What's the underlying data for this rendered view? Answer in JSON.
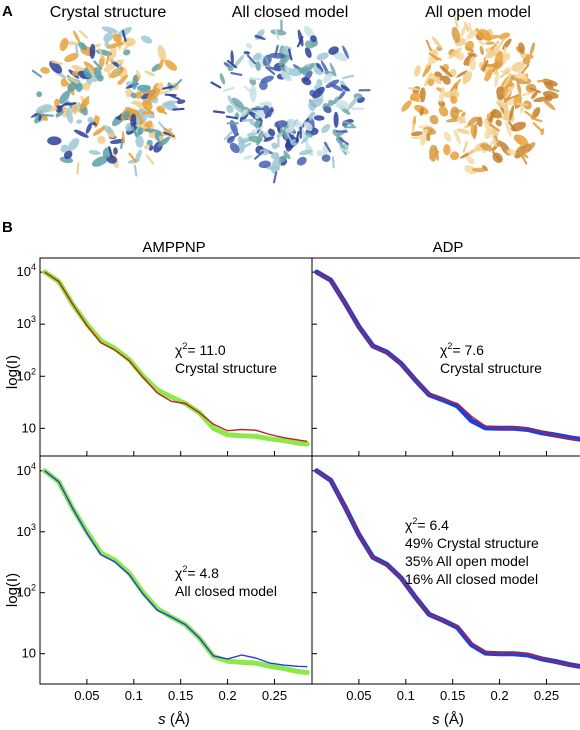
{
  "panel_a": {
    "label": "A",
    "structures": [
      {
        "title": "Crystal structure",
        "palette": [
          "#e8a13a",
          "#f1cf8c",
          "#9ec8d2",
          "#2c3f9a",
          "#5aa0a8"
        ]
      },
      {
        "title": "All closed model",
        "palette": [
          "#2c3f9a",
          "#4a5fb4",
          "#9ec8d2",
          "#6fa7a8",
          "#c9e3e6"
        ]
      },
      {
        "title": "All open model",
        "palette": [
          "#e8a13a",
          "#f4d9a2",
          "#d69a45",
          "#f1cf8c",
          "#c47f2b"
        ]
      }
    ]
  },
  "panel_b": {
    "label": "B",
    "column_titles": [
      "AMPPNP",
      "ADP"
    ],
    "y_axis_label": "log(I)",
    "x_axis_label_var": "s",
    "x_axis_label_unit": " (Å)",
    "y_tick_labels": [
      {
        "mant": "10",
        "exp": "4"
      },
      {
        "mant": "10",
        "exp": "3"
      },
      {
        "mant": "10",
        "exp": "2"
      },
      {
        "mant": "10",
        "exp": ""
      }
    ],
    "x_tick_labels": [
      "0.05",
      "0.1",
      "0.15",
      "0.2",
      "0.25"
    ],
    "panels": [
      {
        "chi_prefix": "χ",
        "chi_exp": "2",
        "chi_value": "= 11.0",
        "lines": [
          "Crystal structure"
        ]
      },
      {
        "chi_prefix": "χ",
        "chi_exp": "2",
        "chi_value": "= 7.6",
        "lines": [
          "Crystal structure"
        ]
      },
      {
        "chi_prefix": "χ",
        "chi_exp": "2",
        "chi_value": "= 4.8",
        "lines": [
          "All closed model"
        ]
      },
      {
        "chi_prefix": "χ",
        "chi_exp": "2",
        "chi_value": "= 6.4",
        "lines": [
          "49% Crystal structure",
          "35% All open model",
          "16% All closed model"
        ]
      }
    ]
  },
  "chart_data": [
    {
      "type": "line",
      "title": "AMPPNP",
      "ylabel": "log(I)",
      "xlabel": "s (Å)",
      "yscale": "log",
      "xlim": [
        0,
        0.29
      ],
      "ylim": [
        5,
        12000
      ],
      "x": [
        0.005,
        0.02,
        0.035,
        0.05,
        0.065,
        0.08,
        0.095,
        0.11,
        0.125,
        0.14,
        0.155,
        0.17,
        0.185,
        0.2,
        0.215,
        0.23,
        0.245,
        0.26,
        0.275,
        0.285
      ],
      "series": [
        {
          "style": "experimental",
          "color": "#8de84a",
          "values": [
            10000,
            6600,
            2400,
            1000,
            480,
            340,
            210,
            100,
            55,
            40,
            30,
            20,
            10,
            7.5,
            7.2,
            7.0,
            6.3,
            5.8,
            5.2,
            5.0
          ]
        },
        {
          "style": "fit",
          "color": "#c0201e",
          "values": [
            10000,
            6600,
            2400,
            950,
            440,
            320,
            200,
            95,
            48,
            33,
            30,
            20,
            12,
            9.0,
            9.5,
            9.2,
            7.6,
            6.6,
            6.0,
            5.6
          ]
        }
      ],
      "annotation": "χ2= 11.0 Crystal structure"
    },
    {
      "type": "line",
      "title": "ADP",
      "ylabel": "log(I)",
      "xlabel": "s (Å)",
      "yscale": "log",
      "xlim": [
        0,
        0.29
      ],
      "ylim": [
        5,
        12000
      ],
      "x": [
        0.005,
        0.02,
        0.035,
        0.05,
        0.065,
        0.08,
        0.095,
        0.11,
        0.125,
        0.14,
        0.155,
        0.17,
        0.185,
        0.2,
        0.215,
        0.23,
        0.245,
        0.26,
        0.275,
        0.285
      ],
      "series": [
        {
          "style": "experimental",
          "color": "#1f3ee0",
          "values": [
            10000,
            7000,
            2600,
            900,
            380,
            290,
            175,
            85,
            44,
            35,
            27,
            14,
            10.2,
            10.0,
            10.0,
            9.5,
            8.2,
            7.4,
            6.6,
            6.2
          ]
        },
        {
          "style": "fit",
          "color": "#c0201e",
          "values": [
            10000,
            7000,
            2600,
            880,
            360,
            280,
            170,
            85,
            45,
            36,
            30,
            17,
            11,
            10.0,
            10.3,
            10.0,
            8.5,
            7.2,
            6.3,
            5.8
          ]
        }
      ],
      "annotation": "χ2= 7.6 Crystal structure"
    },
    {
      "type": "line",
      "title": "",
      "ylabel": "log(I)",
      "xlabel": "s (Å)",
      "yscale": "log",
      "xlim": [
        0,
        0.29
      ],
      "ylim": [
        5,
        12000
      ],
      "x": [
        0.005,
        0.02,
        0.035,
        0.05,
        0.065,
        0.08,
        0.095,
        0.11,
        0.125,
        0.14,
        0.155,
        0.17,
        0.185,
        0.2,
        0.215,
        0.23,
        0.245,
        0.26,
        0.275,
        0.285
      ],
      "series": [
        {
          "style": "experimental",
          "color": "#8de84a",
          "values": [
            10000,
            6600,
            2400,
            1000,
            450,
            340,
            210,
            100,
            55,
            40,
            30,
            18,
            9.0,
            7.5,
            7.2,
            7.0,
            6.2,
            5.7,
            5.1,
            4.9
          ]
        },
        {
          "style": "fit",
          "color": "#1f3ee0",
          "values": [
            10000,
            6600,
            2400,
            950,
            420,
            320,
            200,
            95,
            52,
            40,
            30,
            18,
            9.2,
            8.2,
            9.5,
            8.5,
            7.0,
            6.5,
            6.2,
            6.1
          ]
        }
      ],
      "annotation": "χ2= 4.8 All closed model"
    },
    {
      "type": "line",
      "title": "",
      "ylabel": "log(I)",
      "xlabel": "s (Å)",
      "yscale": "log",
      "xlim": [
        0,
        0.29
      ],
      "ylim": [
        5,
        12000
      ],
      "x": [
        0.005,
        0.02,
        0.035,
        0.05,
        0.065,
        0.08,
        0.095,
        0.11,
        0.125,
        0.14,
        0.155,
        0.17,
        0.185,
        0.2,
        0.215,
        0.23,
        0.245,
        0.26,
        0.275,
        0.285
      ],
      "series": [
        {
          "style": "experimental",
          "color": "#1f3ee0",
          "values": [
            10000,
            7000,
            2600,
            900,
            380,
            290,
            175,
            85,
            44,
            35,
            27,
            14,
            10.2,
            10.0,
            10.0,
            9.5,
            8.2,
            7.4,
            6.6,
            6.2
          ]
        },
        {
          "style": "fit",
          "color": "#c0201e",
          "values": [
            10000,
            7000,
            2600,
            900,
            375,
            285,
            172,
            85,
            44,
            35,
            28,
            15,
            10.5,
            10.0,
            10.3,
            10.0,
            8.4,
            7.3,
            6.5,
            6.0
          ]
        }
      ],
      "annotation": "χ2= 6.4 49% Crystal structure 35% All open model 16% All closed model"
    }
  ]
}
